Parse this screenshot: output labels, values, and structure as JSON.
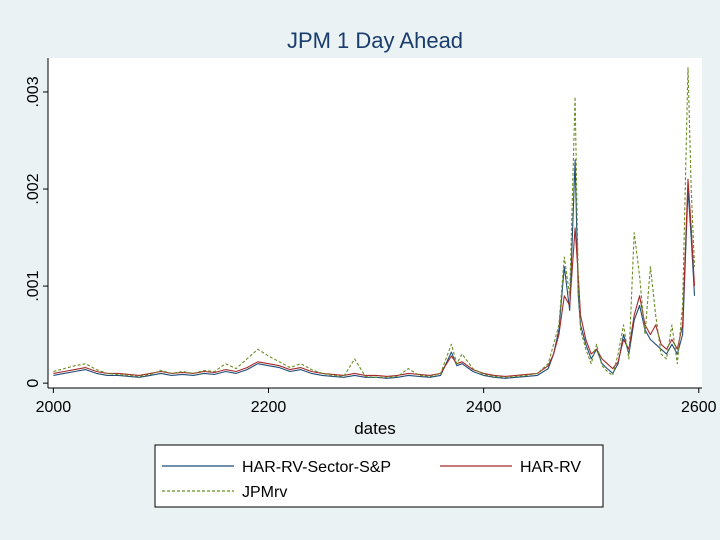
{
  "chart_data": {
    "type": "line",
    "title": "JPM 1 Day Ahead",
    "xlabel": "dates",
    "ylabel": "",
    "xlim": [
      1995,
      2603
    ],
    "ylim": [
      -5e-05,
      0.00335
    ],
    "xticks": [
      2000,
      2200,
      2400,
      2600
    ],
    "xtick_labels": [
      "2000",
      "2200",
      "2400",
      "2600"
    ],
    "yticks": [
      0,
      0.001,
      0.002,
      0.003
    ],
    "ytick_labels": [
      "0",
      ".001",
      ".002",
      ".003"
    ],
    "grid": false,
    "legend_position": "bottom",
    "series": [
      {
        "name": "HAR-RV-Sector-S&P",
        "color": "#1f4e79",
        "style": "solid",
        "points": [
          [
            2000,
            8e-05
          ],
          [
            2010,
            0.0001
          ],
          [
            2020,
            0.00012
          ],
          [
            2030,
            0.00014
          ],
          [
            2040,
            0.0001
          ],
          [
            2050,
            8e-05
          ],
          [
            2060,
            8e-05
          ],
          [
            2070,
            7e-05
          ],
          [
            2080,
            6e-05
          ],
          [
            2090,
            8e-05
          ],
          [
            2100,
            0.0001
          ],
          [
            2110,
            8e-05
          ],
          [
            2120,
            9e-05
          ],
          [
            2130,
            8e-05
          ],
          [
            2140,
            0.0001
          ],
          [
            2150,
            9e-05
          ],
          [
            2160,
            0.00012
          ],
          [
            2170,
            0.0001
          ],
          [
            2180,
            0.00014
          ],
          [
            2190,
            0.0002
          ],
          [
            2200,
            0.00018
          ],
          [
            2210,
            0.00016
          ],
          [
            2220,
            0.00012
          ],
          [
            2230,
            0.00014
          ],
          [
            2240,
            0.0001
          ],
          [
            2250,
            8e-05
          ],
          [
            2260,
            7e-05
          ],
          [
            2270,
            6e-05
          ],
          [
            2280,
            8e-05
          ],
          [
            2290,
            6e-05
          ],
          [
            2300,
            6e-05
          ],
          [
            2310,
            5e-05
          ],
          [
            2320,
            6e-05
          ],
          [
            2330,
            8e-05
          ],
          [
            2340,
            7e-05
          ],
          [
            2350,
            6e-05
          ],
          [
            2360,
            8e-05
          ],
          [
            2370,
            0.00032
          ],
          [
            2375,
            0.00018
          ],
          [
            2380,
            0.0002
          ],
          [
            2390,
            0.00012
          ],
          [
            2400,
            8e-05
          ],
          [
            2410,
            6e-05
          ],
          [
            2420,
            5e-05
          ],
          [
            2430,
            6e-05
          ],
          [
            2440,
            7e-05
          ],
          [
            2450,
            8e-05
          ],
          [
            2460,
            0.00015
          ],
          [
            2465,
            0.0003
          ],
          [
            2470,
            0.00055
          ],
          [
            2475,
            0.0012
          ],
          [
            2480,
            0.00075
          ],
          [
            2485,
            0.0023
          ],
          [
            2488,
            0.0009
          ],
          [
            2490,
            0.0006
          ],
          [
            2495,
            0.0004
          ],
          [
            2500,
            0.00025
          ],
          [
            2505,
            0.00035
          ],
          [
            2510,
            0.0002
          ],
          [
            2515,
            0.00015
          ],
          [
            2520,
            0.0001
          ],
          [
            2525,
            0.0002
          ],
          [
            2530,
            0.0005
          ],
          [
            2535,
            0.0003
          ],
          [
            2540,
            0.00065
          ],
          [
            2545,
            0.0008
          ],
          [
            2550,
            0.00055
          ],
          [
            2555,
            0.00045
          ],
          [
            2560,
            0.0004
          ],
          [
            2565,
            0.00035
          ],
          [
            2570,
            0.0003
          ],
          [
            2575,
            0.0004
          ],
          [
            2580,
            0.0003
          ],
          [
            2585,
            0.0005
          ],
          [
            2590,
            0.002
          ],
          [
            2593,
            0.0015
          ],
          [
            2596,
            0.0009
          ]
        ]
      },
      {
        "name": "HAR-RV",
        "color": "#a52a2a",
        "style": "solid",
        "points": [
          [
            2000,
            0.0001
          ],
          [
            2010,
            0.00012
          ],
          [
            2020,
            0.00014
          ],
          [
            2030,
            0.00016
          ],
          [
            2040,
            0.00012
          ],
          [
            2050,
            0.0001
          ],
          [
            2060,
            0.0001
          ],
          [
            2070,
            9e-05
          ],
          [
            2080,
            8e-05
          ],
          [
            2090,
            0.0001
          ],
          [
            2100,
            0.00012
          ],
          [
            2110,
            0.0001
          ],
          [
            2120,
            0.00011
          ],
          [
            2130,
            0.0001
          ],
          [
            2140,
            0.00012
          ],
          [
            2150,
            0.00011
          ],
          [
            2160,
            0.00014
          ],
          [
            2170,
            0.00012
          ],
          [
            2180,
            0.00016
          ],
          [
            2190,
            0.00022
          ],
          [
            2200,
            0.0002
          ],
          [
            2210,
            0.00018
          ],
          [
            2220,
            0.00014
          ],
          [
            2230,
            0.00016
          ],
          [
            2240,
            0.00012
          ],
          [
            2250,
            0.0001
          ],
          [
            2260,
            9e-05
          ],
          [
            2270,
            8e-05
          ],
          [
            2280,
            0.0001
          ],
          [
            2290,
            8e-05
          ],
          [
            2300,
            8e-05
          ],
          [
            2310,
            7e-05
          ],
          [
            2320,
            8e-05
          ],
          [
            2330,
            0.0001
          ],
          [
            2340,
            9e-05
          ],
          [
            2350,
            8e-05
          ],
          [
            2360,
            0.0001
          ],
          [
            2370,
            0.00028
          ],
          [
            2375,
            0.0002
          ],
          [
            2380,
            0.00022
          ],
          [
            2390,
            0.00014
          ],
          [
            2400,
            0.0001
          ],
          [
            2410,
            8e-05
          ],
          [
            2420,
            7e-05
          ],
          [
            2430,
            8e-05
          ],
          [
            2440,
            9e-05
          ],
          [
            2450,
            0.0001
          ],
          [
            2460,
            0.00018
          ],
          [
            2465,
            0.0003
          ],
          [
            2470,
            0.0005
          ],
          [
            2475,
            0.0009
          ],
          [
            2480,
            0.0008
          ],
          [
            2485,
            0.0016
          ],
          [
            2488,
            0.0011
          ],
          [
            2490,
            0.0007
          ],
          [
            2495,
            0.00045
          ],
          [
            2500,
            0.0003
          ],
          [
            2505,
            0.00035
          ],
          [
            2510,
            0.00025
          ],
          [
            2515,
            0.0002
          ],
          [
            2520,
            0.00015
          ],
          [
            2525,
            0.00022
          ],
          [
            2530,
            0.00045
          ],
          [
            2535,
            0.00035
          ],
          [
            2540,
            0.0007
          ],
          [
            2545,
            0.0009
          ],
          [
            2550,
            0.0006
          ],
          [
            2555,
            0.0005
          ],
          [
            2560,
            0.0006
          ],
          [
            2565,
            0.0004
          ],
          [
            2570,
            0.00035
          ],
          [
            2575,
            0.00045
          ],
          [
            2580,
            0.00035
          ],
          [
            2585,
            0.0006
          ],
          [
            2590,
            0.0021
          ],
          [
            2593,
            0.0016
          ],
          [
            2596,
            0.001
          ]
        ]
      },
      {
        "name": "JPMrv",
        "color": "#6b8e23",
        "style": "dashed",
        "points": [
          [
            2000,
            0.00012
          ],
          [
            2010,
            0.00015
          ],
          [
            2020,
            0.00018
          ],
          [
            2030,
            0.0002
          ],
          [
            2040,
            0.00014
          ],
          [
            2050,
            0.0001
          ],
          [
            2060,
            9e-05
          ],
          [
            2070,
            8e-05
          ],
          [
            2080,
            7e-05
          ],
          [
            2090,
            9e-05
          ],
          [
            2100,
            0.00013
          ],
          [
            2110,
            0.0001
          ],
          [
            2120,
            0.00012
          ],
          [
            2130,
            0.0001
          ],
          [
            2140,
            0.00013
          ],
          [
            2150,
            0.00012
          ],
          [
            2160,
            0.0002
          ],
          [
            2170,
            0.00015
          ],
          [
            2180,
            0.00025
          ],
          [
            2190,
            0.00035
          ],
          [
            2200,
            0.00028
          ],
          [
            2210,
            0.00022
          ],
          [
            2220,
            0.00016
          ],
          [
            2230,
            0.0002
          ],
          [
            2240,
            0.00014
          ],
          [
            2250,
            0.0001
          ],
          [
            2260,
            8e-05
          ],
          [
            2270,
            7e-05
          ],
          [
            2280,
            0.00025
          ],
          [
            2290,
            7e-05
          ],
          [
            2300,
            6e-05
          ],
          [
            2310,
            6e-05
          ],
          [
            2320,
            7e-05
          ],
          [
            2330,
            0.00015
          ],
          [
            2340,
            8e-05
          ],
          [
            2350,
            7e-05
          ],
          [
            2360,
            0.0001
          ],
          [
            2370,
            0.0004
          ],
          [
            2375,
            0.0002
          ],
          [
            2380,
            0.0003
          ],
          [
            2390,
            0.00015
          ],
          [
            2400,
            9e-05
          ],
          [
            2410,
            7e-05
          ],
          [
            2420,
            6e-05
          ],
          [
            2430,
            7e-05
          ],
          [
            2440,
            8e-05
          ],
          [
            2450,
            0.0001
          ],
          [
            2460,
            0.0002
          ],
          [
            2465,
            0.0004
          ],
          [
            2470,
            0.0006
          ],
          [
            2475,
            0.0013
          ],
          [
            2480,
            0.0009
          ],
          [
            2485,
            0.00295
          ],
          [
            2488,
            0.001
          ],
          [
            2490,
            0.00055
          ],
          [
            2495,
            0.00035
          ],
          [
            2500,
            0.0002
          ],
          [
            2505,
            0.0004
          ],
          [
            2510,
            0.00018
          ],
          [
            2515,
            0.00012
          ],
          [
            2520,
            8e-05
          ],
          [
            2525,
            0.0003
          ],
          [
            2530,
            0.0006
          ],
          [
            2535,
            0.00025
          ],
          [
            2540,
            0.00155
          ],
          [
            2545,
            0.0011
          ],
          [
            2550,
            0.0005
          ],
          [
            2555,
            0.0012
          ],
          [
            2560,
            0.0007
          ],
          [
            2565,
            0.0003
          ],
          [
            2570,
            0.00025
          ],
          [
            2575,
            0.0006
          ],
          [
            2580,
            0.0002
          ],
          [
            2585,
            0.0008
          ],
          [
            2590,
            0.00325
          ],
          [
            2593,
            0.002
          ],
          [
            2596,
            0.0012
          ]
        ]
      }
    ]
  }
}
